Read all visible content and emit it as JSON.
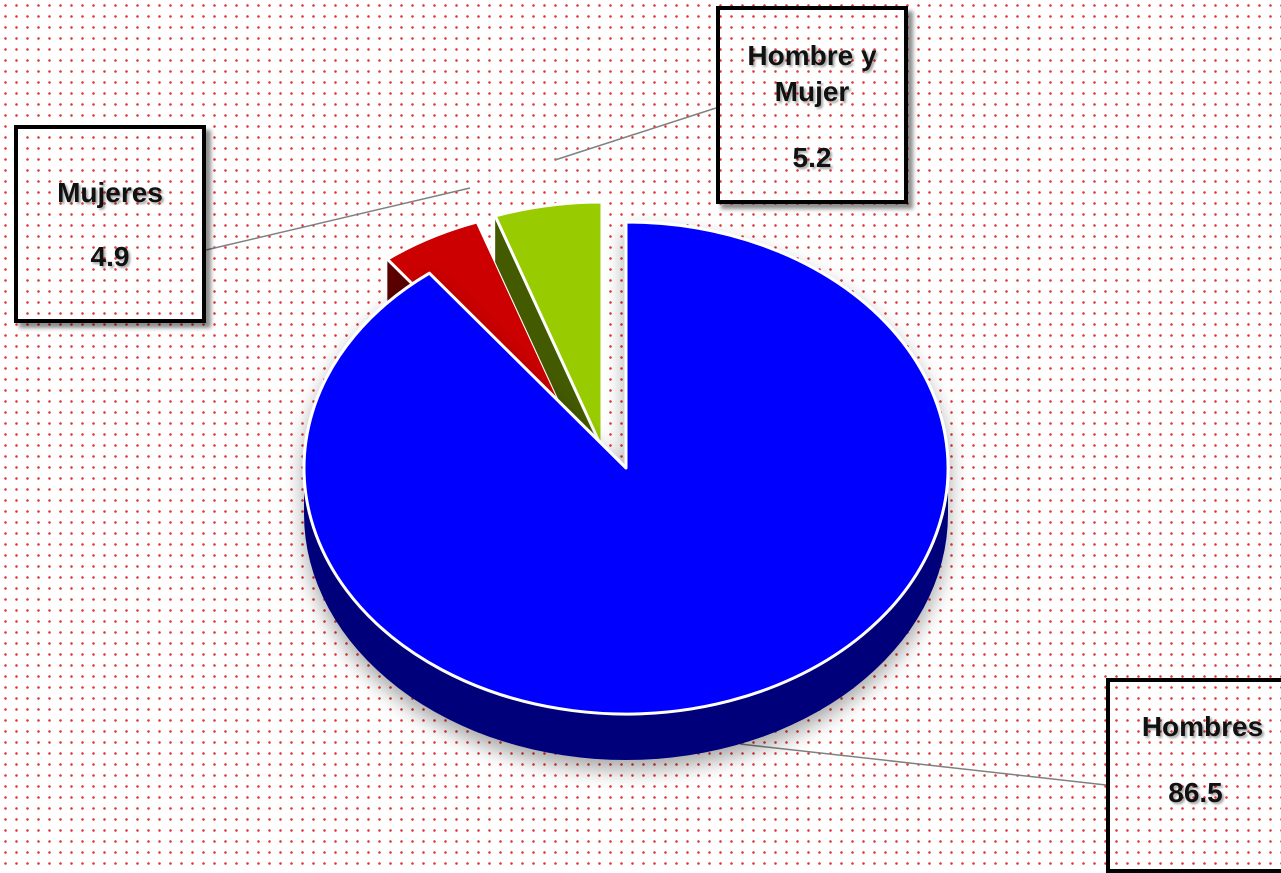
{
  "chart_data": {
    "type": "pie",
    "title": "",
    "slices": [
      {
        "name": "Hombres",
        "value": 86.5,
        "value_label": "86.5",
        "color": "#0000ff",
        "side_color": "#00007a"
      },
      {
        "name": "Mujeres",
        "value": 4.9,
        "value_label": "4.9",
        "color": "#cc0000",
        "side_color": "#5a0000"
      },
      {
        "name": "Hombre y Mujer",
        "value": 5.2,
        "value_label": "5.2",
        "color": "#99cc00",
        "side_color": "#445a00"
      }
    ],
    "style": "3d-exploded",
    "legend": "none"
  }
}
